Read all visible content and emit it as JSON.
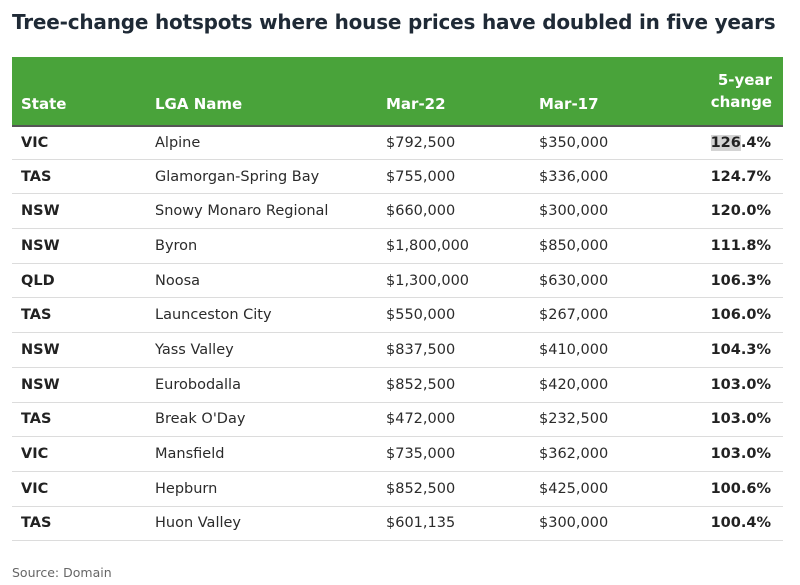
{
  "title": "Tree-change hotspots where house prices have doubled in five years",
  "headers": {
    "state": "State",
    "lga": "LGA Name",
    "mar22": "Mar-22",
    "mar17": "Mar-17",
    "change_line1": "5-year",
    "change_line2": "change"
  },
  "rows": [
    {
      "state": "VIC",
      "lga": "Alpine",
      "mar22": "$792,500",
      "mar17": "$350,000",
      "change_hl": "126",
      "change_rest": ".4%"
    },
    {
      "state": "TAS",
      "lga": "Glamorgan-Spring Bay",
      "mar22": "$755,000",
      "mar17": "$336,000",
      "change": "124.7%"
    },
    {
      "state": "NSW",
      "lga": "Snowy Monaro Regional",
      "mar22": "$660,000",
      "mar17": "$300,000",
      "change": "120.0%"
    },
    {
      "state": "NSW",
      "lga": "Byron",
      "mar22": "$1,800,000",
      "mar17": "$850,000",
      "change": "111.8%"
    },
    {
      "state": "QLD",
      "lga": "Noosa",
      "mar22": "$1,300,000",
      "mar17": "$630,000",
      "change": "106.3%"
    },
    {
      "state": "TAS",
      "lga": "Launceston City",
      "mar22": "$550,000",
      "mar17": "$267,000",
      "change": "106.0%"
    },
    {
      "state": "NSW",
      "lga": "Yass Valley",
      "mar22": "$837,500",
      "mar17": "$410,000",
      "change": "104.3%"
    },
    {
      "state": "NSW",
      "lga": "Eurobodalla",
      "mar22": "$852,500",
      "mar17": "$420,000",
      "change": "103.0%"
    },
    {
      "state": "TAS",
      "lga": "Break O'Day",
      "mar22": "$472,000",
      "mar17": "$232,500",
      "change": "103.0%"
    },
    {
      "state": "VIC",
      "lga": "Mansfield",
      "mar22": "$735,000",
      "mar17": "$362,000",
      "change": "103.0%"
    },
    {
      "state": "VIC",
      "lga": "Hepburn",
      "mar22": "$852,500",
      "mar17": "$425,000",
      "change": "100.6%"
    },
    {
      "state": "TAS",
      "lga": "Huon Valley",
      "mar22": "$601,135",
      "mar17": "$300,000",
      "change": "100.4%"
    }
  ],
  "source": "Source: Domain",
  "colors": {
    "header_bg": "#49a33a",
    "title_text": "#1f2a36"
  }
}
